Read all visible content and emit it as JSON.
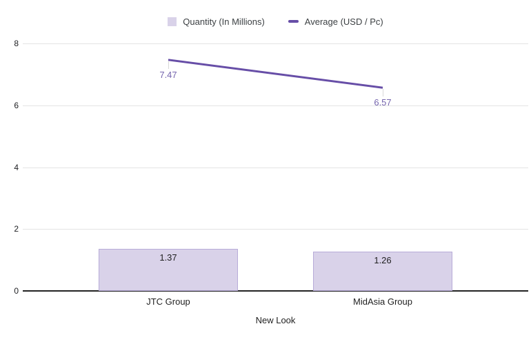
{
  "legend": {
    "items": [
      {
        "label": "Quantity (In Millions)",
        "swatch": "square",
        "color": "#d9d2e9"
      },
      {
        "label": "Average (USD / Pc)",
        "swatch": "line",
        "color": "#674ea7"
      }
    ]
  },
  "chart_data": {
    "type": "combo",
    "categories": [
      "JTC Group",
      "MidAsia Group"
    ],
    "series": [
      {
        "name": "Quantity (In Millions)",
        "type": "bar",
        "color": "#d9d2e9",
        "border_color": "#b7abd8",
        "values": [
          1.37,
          1.26
        ],
        "labels": [
          "1.37",
          "1.26"
        ],
        "label_color": "#1f1f1f"
      },
      {
        "name": "Average (USD / Pc)",
        "type": "line",
        "color": "#674ea7",
        "values": [
          7.47,
          6.57
        ],
        "labels": [
          "7.47",
          "6.57"
        ],
        "label_color": "#7565ae"
      }
    ],
    "xlabel": "New Look",
    "ylabel": "",
    "ylim": [
      0,
      8
    ],
    "yticks": [
      0,
      2,
      4,
      6,
      8
    ],
    "grid": true,
    "legend_position": "top",
    "gridline_color": "#e3e3e3",
    "axis_line_color": "#212121",
    "leader_line_color": "#d8d8d8"
  }
}
